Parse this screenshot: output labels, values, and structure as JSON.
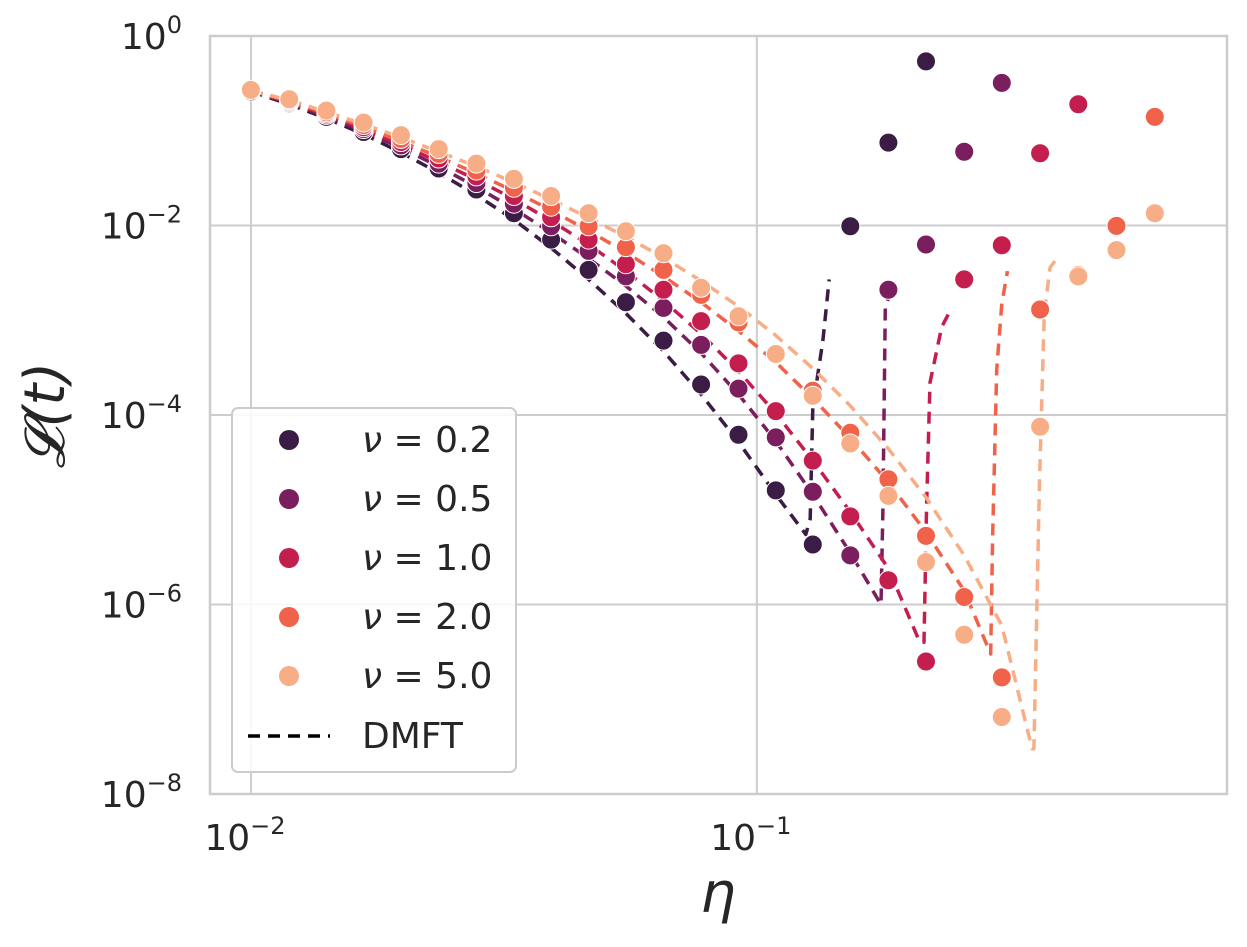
{
  "chart_data": {
    "type": "scatter",
    "xlabel": "η",
    "ylabel": "𝓛(t)",
    "xscale": "log",
    "yscale": "log",
    "xlim": [
      0.0083,
      0.85
    ],
    "ylim": [
      1e-08,
      1
    ],
    "grid": true,
    "legend_position": "lower-left",
    "x_ticks": [
      {
        "base": "10",
        "exp": "−2",
        "value": 0.01
      },
      {
        "base": "10",
        "exp": "−1",
        "value": 0.1
      }
    ],
    "y_ticks": [
      {
        "base": "10",
        "exp": "0",
        "value": 1
      },
      {
        "base": "10",
        "exp": "−2",
        "value": 0.01
      },
      {
        "base": "10",
        "exp": "−4",
        "value": 0.0001
      },
      {
        "base": "10",
        "exp": "−6",
        "value": 1e-06
      },
      {
        "base": "10",
        "exp": "−8",
        "value": 1e-08
      }
    ],
    "series": [
      {
        "name": "ν = 0.2",
        "label_prefix": "ν",
        "label_value": "= 0.2",
        "color": "#3b1c44",
        "points": [
          [
            0.01,
            0.26
          ],
          [
            0.0119,
            0.195
          ],
          [
            0.0141,
            0.14
          ],
          [
            0.0167,
            0.097
          ],
          [
            0.0198,
            0.064
          ],
          [
            0.0235,
            0.04
          ],
          [
            0.0279,
            0.024
          ],
          [
            0.0331,
            0.0135
          ],
          [
            0.0392,
            0.0071
          ],
          [
            0.0465,
            0.0034
          ],
          [
            0.0551,
            0.00155
          ],
          [
            0.0654,
            0.00061
          ],
          [
            0.0776,
            0.00021
          ],
          [
            0.092,
            6.2e-05
          ],
          [
            0.109,
            1.6e-05
          ],
          [
            0.129,
            4.3e-06
          ],
          [
            0.153,
            0.0098
          ],
          [
            0.182,
            0.075
          ],
          [
            0.216,
            0.54
          ]
        ],
        "dmft": [
          [
            0.01,
            0.26
          ],
          [
            0.0119,
            0.19
          ],
          [
            0.0141,
            0.135
          ],
          [
            0.0167,
            0.092
          ],
          [
            0.0198,
            0.059
          ],
          [
            0.0235,
            0.036
          ],
          [
            0.0279,
            0.021
          ],
          [
            0.0331,
            0.0115
          ],
          [
            0.0392,
            0.0058
          ],
          [
            0.0465,
            0.0027
          ],
          [
            0.0551,
            0.00118
          ],
          [
            0.0654,
            0.00047
          ],
          [
            0.0776,
            0.000165
          ],
          [
            0.092,
            5.2e-05
          ],
          [
            0.109,
            1.45e-05
          ],
          [
            0.125,
            5.5e-06
          ],
          [
            0.1275,
            8e-06
          ],
          [
            0.129,
            0.00012
          ],
          [
            0.135,
            0.0006
          ],
          [
            0.139,
            0.0027
          ]
        ]
      },
      {
        "name": "ν = 0.5",
        "label_prefix": "ν",
        "label_value": "= 0.5",
        "color": "#7a1e5d",
        "points": [
          [
            0.01,
            0.27
          ],
          [
            0.0119,
            0.2
          ],
          [
            0.0141,
            0.147
          ],
          [
            0.0167,
            0.104
          ],
          [
            0.0198,
            0.07
          ],
          [
            0.0235,
            0.045
          ],
          [
            0.0279,
            0.028
          ],
          [
            0.0331,
            0.017
          ],
          [
            0.0392,
            0.0098
          ],
          [
            0.0465,
            0.0054
          ],
          [
            0.0551,
            0.0029
          ],
          [
            0.0654,
            0.00135
          ],
          [
            0.0776,
            0.00055
          ],
          [
            0.092,
            0.00019
          ],
          [
            0.109,
            5.8e-05
          ],
          [
            0.129,
            1.55e-05
          ],
          [
            0.153,
            3.3e-06
          ],
          [
            0.182,
            0.0021
          ],
          [
            0.216,
            0.0063
          ],
          [
            0.257,
            0.06
          ],
          [
            0.305,
            0.32
          ]
        ],
        "dmft": [
          [
            0.01,
            0.265
          ],
          [
            0.0119,
            0.195
          ],
          [
            0.0141,
            0.142
          ],
          [
            0.0167,
            0.099
          ],
          [
            0.0198,
            0.066
          ],
          [
            0.0235,
            0.042
          ],
          [
            0.0279,
            0.0255
          ],
          [
            0.0331,
            0.015
          ],
          [
            0.0392,
            0.0084
          ],
          [
            0.0465,
            0.0045
          ],
          [
            0.0551,
            0.0023
          ],
          [
            0.0654,
            0.00108
          ],
          [
            0.0776,
            0.00045
          ],
          [
            0.092,
            0.000165
          ],
          [
            0.109,
            5.3e-05
          ],
          [
            0.129,
            1.45e-05
          ],
          [
            0.153,
            3.5e-06
          ],
          [
            0.176,
            1e-06
          ],
          [
            0.1775,
            1e-05
          ],
          [
            0.1795,
            0.0014
          ],
          [
            0.185,
            0.0021
          ]
        ]
      },
      {
        "name": "ν = 1.0",
        "label_prefix": "ν",
        "label_value": "= 1.0",
        "color": "#c41e4e",
        "points": [
          [
            0.01,
            0.27
          ],
          [
            0.0119,
            0.205
          ],
          [
            0.0141,
            0.152
          ],
          [
            0.0167,
            0.109
          ],
          [
            0.0198,
            0.076
          ],
          [
            0.0235,
            0.051
          ],
          [
            0.0279,
            0.033
          ],
          [
            0.0331,
            0.0205
          ],
          [
            0.0392,
            0.0122
          ],
          [
            0.0465,
            0.0071
          ],
          [
            0.0551,
            0.0039
          ],
          [
            0.0654,
            0.0021
          ],
          [
            0.0776,
            0.00098
          ],
          [
            0.092,
            0.00035
          ],
          [
            0.109,
            0.00011
          ],
          [
            0.129,
            3.3e-05
          ],
          [
            0.153,
            8.5e-06
          ],
          [
            0.182,
            1.8e-06
          ],
          [
            0.216,
            2.5e-07
          ],
          [
            0.257,
            0.0027
          ],
          [
            0.305,
            0.0062
          ],
          [
            0.363,
            0.058
          ],
          [
            0.432,
            0.19
          ]
        ],
        "dmft": [
          [
            0.01,
            0.265
          ],
          [
            0.0119,
            0.2
          ],
          [
            0.0141,
            0.147
          ],
          [
            0.0167,
            0.104
          ],
          [
            0.0198,
            0.071
          ],
          [
            0.0235,
            0.047
          ],
          [
            0.0279,
            0.0305
          ],
          [
            0.0331,
            0.019
          ],
          [
            0.0392,
            0.0112
          ],
          [
            0.0465,
            0.0063
          ],
          [
            0.0551,
            0.0033
          ],
          [
            0.0654,
            0.0016
          ],
          [
            0.0776,
            0.00072
          ],
          [
            0.092,
            0.00029
          ],
          [
            0.109,
            0.000104
          ],
          [
            0.129,
            3.3e-05
          ],
          [
            0.153,
            9.5e-06
          ],
          [
            0.182,
            2.4e-06
          ],
          [
            0.21,
            4e-07
          ],
          [
            0.214,
            4e-07
          ],
          [
            0.2165,
            1e-05
          ],
          [
            0.22,
            0.00022
          ],
          [
            0.232,
            0.00085
          ],
          [
            0.24,
            0.0012
          ]
        ]
      },
      {
        "name": "ν = 2.0",
        "label_prefix": "ν",
        "label_value": "= 2.0",
        "color": "#f0624a",
        "points": [
          [
            0.01,
            0.27
          ],
          [
            0.0119,
            0.21
          ],
          [
            0.0141,
            0.157
          ],
          [
            0.0167,
            0.115
          ],
          [
            0.0198,
            0.082
          ],
          [
            0.0235,
            0.057
          ],
          [
            0.0279,
            0.038
          ],
          [
            0.0331,
            0.025
          ],
          [
            0.0392,
            0.0158
          ],
          [
            0.0465,
            0.0098
          ],
          [
            0.0551,
            0.0059
          ],
          [
            0.0654,
            0.0034
          ],
          [
            0.0776,
            0.00185
          ],
          [
            0.092,
            0.00095
          ],
          [
            0.109,
            0.00044
          ],
          [
            0.129,
            0.00018
          ],
          [
            0.153,
            6.5e-05
          ],
          [
            0.182,
            2.1e-05
          ],
          [
            0.216,
            5.3e-06
          ],
          [
            0.257,
            1.2e-06
          ],
          [
            0.305,
            1.7e-07
          ],
          [
            0.363,
            0.0013
          ],
          [
            0.432,
            0.003
          ],
          [
            0.514,
            0.0099
          ],
          [
            0.612,
            0.14
          ]
        ],
        "dmft": [
          [
            0.01,
            0.265
          ],
          [
            0.0119,
            0.205
          ],
          [
            0.0141,
            0.152
          ],
          [
            0.0167,
            0.11
          ],
          [
            0.0198,
            0.077
          ],
          [
            0.0235,
            0.053
          ],
          [
            0.0279,
            0.0355
          ],
          [
            0.0331,
            0.023
          ],
          [
            0.0392,
            0.0145
          ],
          [
            0.0465,
            0.0088
          ],
          [
            0.0551,
            0.0052
          ],
          [
            0.0654,
            0.0029
          ],
          [
            0.0776,
            0.00155
          ],
          [
            0.092,
            0.00077
          ],
          [
            0.109,
            0.00036
          ],
          [
            0.129,
            0.00015
          ],
          [
            0.153,
            5.7e-05
          ],
          [
            0.182,
            1.95e-05
          ],
          [
            0.216,
            5.8e-06
          ],
          [
            0.257,
            1.4e-06
          ],
          [
            0.29,
            3e-07
          ],
          [
            0.29,
            3e-07
          ],
          [
            0.2925,
            5e-06
          ],
          [
            0.298,
            0.0003
          ],
          [
            0.305,
            0.0015
          ],
          [
            0.313,
            0.0033
          ]
        ]
      },
      {
        "name": "ν = 5.0",
        "label_prefix": "ν",
        "label_value": "= 5.0",
        "color": "#f7ad86",
        "points": [
          [
            0.01,
            0.27
          ],
          [
            0.0119,
            0.215
          ],
          [
            0.0141,
            0.163
          ],
          [
            0.0167,
            0.122
          ],
          [
            0.0198,
            0.09
          ],
          [
            0.0235,
            0.064
          ],
          [
            0.0279,
            0.045
          ],
          [
            0.0331,
            0.031
          ],
          [
            0.0392,
            0.0205
          ],
          [
            0.0465,
            0.0135
          ],
          [
            0.0551,
            0.0087
          ],
          [
            0.0654,
            0.0051
          ],
          [
            0.0776,
            0.0022
          ],
          [
            0.092,
            0.0011
          ],
          [
            0.109,
            0.00044
          ],
          [
            0.129,
            0.00016
          ],
          [
            0.153,
            5e-05
          ],
          [
            0.182,
            1.4e-05
          ],
          [
            0.216,
            2.8e-06
          ],
          [
            0.257,
            4.8e-07
          ],
          [
            0.305,
            6.5e-08
          ],
          [
            0.363,
            7.5e-05
          ],
          [
            0.432,
            0.0029
          ],
          [
            0.514,
            0.0055
          ],
          [
            0.612,
            0.0135
          ]
        ],
        "dmft": [
          [
            0.01,
            0.265
          ],
          [
            0.0119,
            0.21
          ],
          [
            0.0141,
            0.158
          ],
          [
            0.0167,
            0.117
          ],
          [
            0.0198,
            0.085
          ],
          [
            0.0235,
            0.06
          ],
          [
            0.0279,
            0.042
          ],
          [
            0.0331,
            0.0285
          ],
          [
            0.0392,
            0.0188
          ],
          [
            0.0465,
            0.0121
          ],
          [
            0.0551,
            0.0076
          ],
          [
            0.0654,
            0.0046
          ],
          [
            0.0776,
            0.0026
          ],
          [
            0.092,
            0.0014
          ],
          [
            0.109,
            0.00069
          ],
          [
            0.129,
            0.00031
          ],
          [
            0.153,
            0.000125
          ],
          [
            0.182,
            4.4e-05
          ],
          [
            0.216,
            1.35e-05
          ],
          [
            0.257,
            3.3e-06
          ],
          [
            0.305,
            6e-07
          ],
          [
            0.35,
            3e-08
          ],
          [
            0.353,
            3e-08
          ],
          [
            0.362,
            2e-05
          ],
          [
            0.37,
            0.0012
          ],
          [
            0.38,
            0.0036
          ],
          [
            0.392,
            0.0045
          ]
        ]
      }
    ],
    "legend_dmft_label": "DMFT"
  }
}
